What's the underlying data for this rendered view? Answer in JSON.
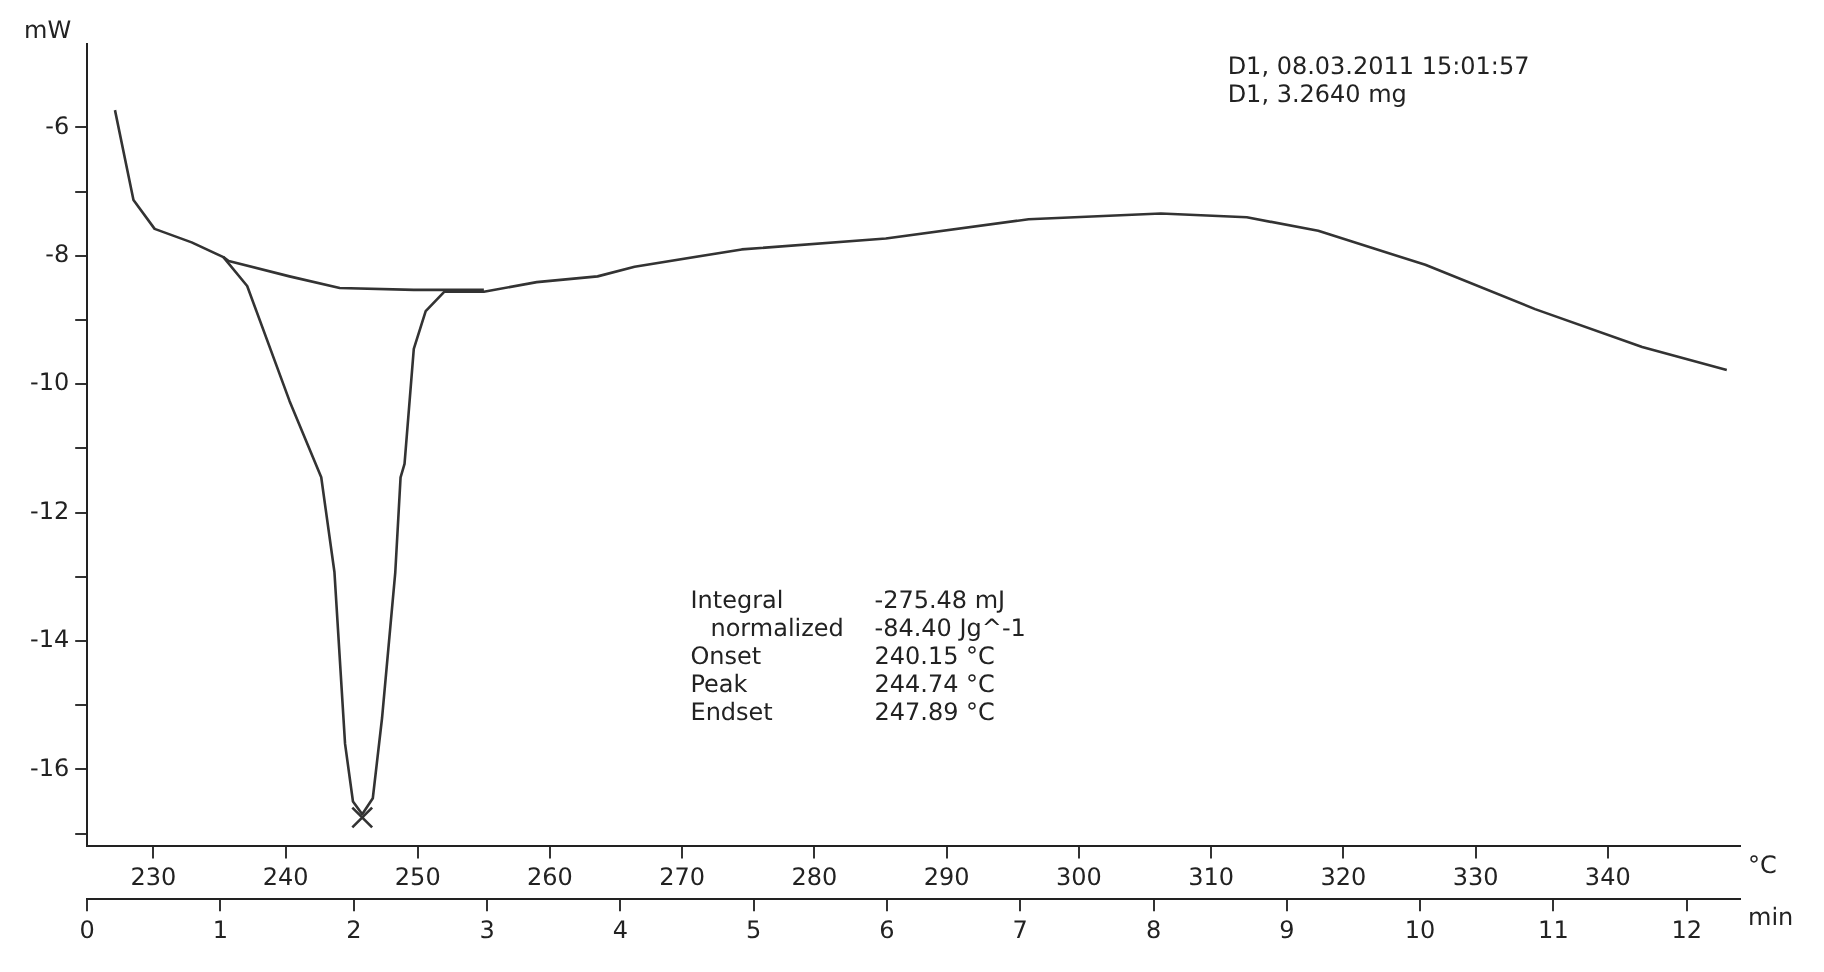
{
  "chart_data": {
    "type": "line",
    "xlabel": "°C",
    "ylabel": "mW",
    "x2label": "min",
    "xlim": [
      225,
      350
    ],
    "xticks": [
      230,
      240,
      250,
      260,
      270,
      280,
      290,
      300,
      310,
      320,
      330,
      340
    ],
    "x2lim": [
      0,
      12.4
    ],
    "x2ticks": [
      0,
      1,
      2,
      3,
      4,
      5,
      6,
      7,
      8,
      9,
      10,
      11,
      12
    ],
    "ylim": [
      -17.2,
      -4.7
    ],
    "yticks": [
      -6,
      {
        "value": -7,
        "label": null
      },
      -8,
      {
        "value": -9,
        "label": null
      },
      -10,
      {
        "value": -11,
        "label": null
      },
      -12,
      {
        "value": -13,
        "label": null
      },
      -14,
      {
        "value": -15,
        "label": null
      },
      -16,
      {
        "value": -17,
        "label": null
      }
    ],
    "series": [
      {
        "color": "#333333",
        "x": [
          227.1,
          228.5,
          230.1,
          232.9,
          235.3,
          237.1,
          240.3,
          242.7,
          243.7,
          244.5,
          245.1,
          245.8,
          246.6,
          247.3,
          248.3,
          248.7,
          249.0,
          249.7,
          250.6,
          252.0,
          255.0,
          259.0,
          263.6,
          266.4,
          274.5,
          285.4,
          296.2,
          306.2,
          312.7,
          318.1,
          326.2,
          334.5,
          342.6,
          349.0
        ],
        "values": [
          -5.73,
          -7.13,
          -7.58,
          -7.79,
          -8.02,
          -8.47,
          -10.26,
          -11.45,
          -12.93,
          -15.6,
          -16.5,
          -16.7,
          -16.45,
          -15.2,
          -12.93,
          -11.45,
          -11.24,
          -9.45,
          -8.86,
          -8.56,
          -8.56,
          -8.41,
          -8.32,
          -8.17,
          -7.9,
          -7.73,
          -7.43,
          -7.34,
          -7.4,
          -7.61,
          -8.14,
          -8.83,
          -9.42,
          -9.78
        ]
      },
      {
        "color": "#333333",
        "x": [
          235.3,
          235.7,
          240.3,
          244.1,
          249.7,
          255.0
        ],
        "values": [
          -8.02,
          -8.08,
          -8.32,
          -8.5,
          -8.53,
          -8.53
        ]
      },
      {
        "type": "scatter",
        "marker": "cross",
        "color": "#333333",
        "x": [
          245.8
        ],
        "values": [
          -16.75
        ]
      }
    ],
    "annotations": [
      "D1, 08.03.2011 15:01:57",
      "D1, 3.2640 mg",
      "Integral",
      "-275.48 mJ",
      "normalized",
      "-84.40 Jg^-1",
      "Onset",
      "240.15 °C",
      "Peak",
      "244.74 °C",
      "Endset",
      "247.89 °C"
    ],
    "grid": false,
    "legend": false,
    "line_style": "solid"
  }
}
